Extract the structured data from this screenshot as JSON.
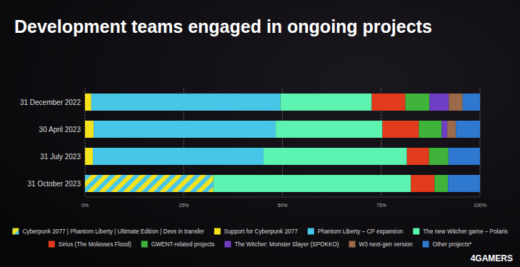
{
  "chart_data": {
    "type": "bar",
    "orientation": "horizontal",
    "stacked": true,
    "title": "Development teams engaged in ongoing projects",
    "annotations": [
      "4GAMERS"
    ],
    "categories": [
      "31 December 2022",
      "30 April 2023",
      "31 July 2023",
      "31 October 2023"
    ],
    "xlim": [
      0,
      100
    ],
    "xticks": [
      {
        "value": 0,
        "label": "0%"
      },
      {
        "value": 25,
        "label": "25%"
      },
      {
        "value": 50,
        "label": "50%"
      },
      {
        "value": 75,
        "label": "75%"
      },
      {
        "value": 100,
        "label": "100%"
      }
    ],
    "grid": true,
    "legend": "bottom",
    "series": [
      {
        "name": "Cyberpunk 2077 | Phantom Liberty | Ultimate Edition | Devs in transfer",
        "color": "#f4e21c",
        "values": [
          0,
          0,
          0,
          32.5
        ]
      },
      {
        "name": "Support for Cyberpunk 2077",
        "color": "#f4e21c",
        "values": [
          1.6,
          2.2,
          2,
          0
        ]
      },
      {
        "name": "Phantom Liberty – CP expansion",
        "color": "#48c6e8",
        "values": [
          47.9,
          46.1,
          43.2,
          0
        ]
      },
      {
        "name": "The new Witcher game – Polaris",
        "color": "#5cf2b0",
        "values": [
          23.1,
          27,
          36.3,
          50
        ]
      },
      {
        "name": "Sirius (The Molasses Flood)",
        "color": "#e23a1c",
        "values": [
          8.5,
          9.2,
          5.6,
          6
        ]
      },
      {
        "name": "GWENT-related projects",
        "color": "#3fb33a",
        "values": [
          6.1,
          5.8,
          4.9,
          3.4
        ]
      },
      {
        "name": "The Witcher: Monster Slayer (SPOKKO)",
        "color": "#6e3fc4",
        "values": [
          4.9,
          1.4,
          0,
          0
        ]
      },
      {
        "name": "W3 next-gen version",
        "color": "#9a6a4a",
        "values": [
          3.5,
          2.2,
          0,
          0
        ]
      },
      {
        "name": "Other projects*",
        "color": "#2f78d0",
        "values": [
          4.4,
          6.1,
          8,
          8.1
        ]
      }
    ]
  }
}
